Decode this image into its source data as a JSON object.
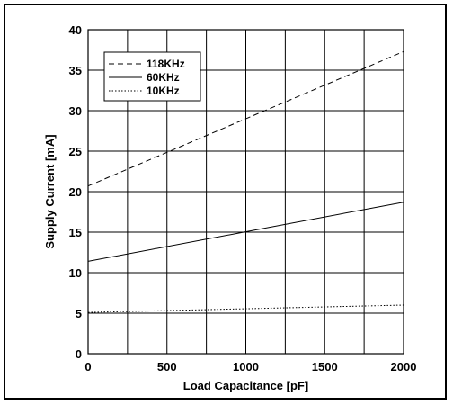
{
  "chart_data": {
    "type": "line",
    "xlabel": "Load Capacitance [pF]",
    "ylabel": "Supply Current [mA]",
    "xlim": [
      0,
      2000
    ],
    "ylim": [
      0,
      40
    ],
    "x_ticks": [
      "0",
      "500",
      "1000",
      "1500",
      "2000"
    ],
    "y_ticks": [
      "0",
      "5",
      "10",
      "15",
      "20",
      "25",
      "30",
      "35",
      "40"
    ],
    "grid": true,
    "legend_position": "top-left",
    "series": [
      {
        "name": "118KHz",
        "style": "dashed",
        "x": [
          0,
          2000
        ],
        "y": [
          20.7,
          37.3
        ]
      },
      {
        "name": "60KHz",
        "style": "solid",
        "x": [
          0,
          2000
        ],
        "y": [
          11.4,
          18.7
        ]
      },
      {
        "name": "10KHz",
        "style": "dotted",
        "x": [
          0,
          2000
        ],
        "y": [
          5.1,
          6.0
        ]
      }
    ]
  }
}
